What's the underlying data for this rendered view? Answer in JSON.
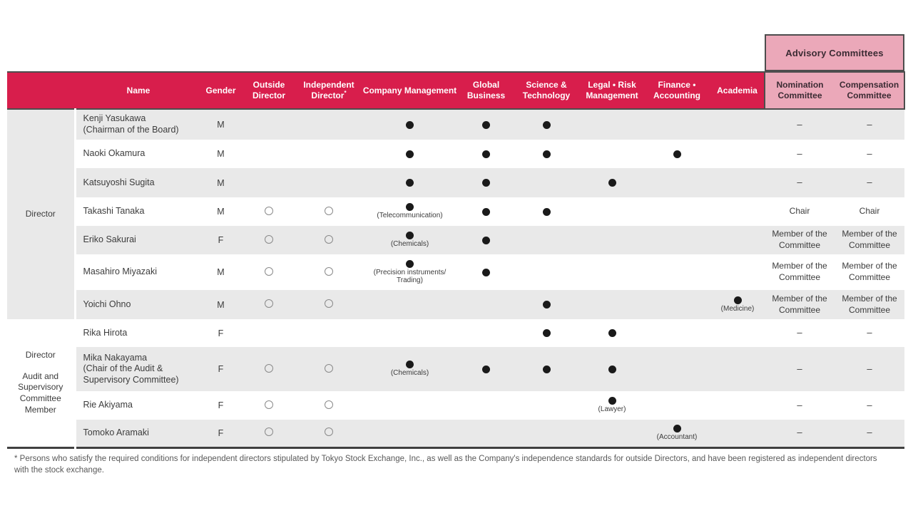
{
  "advisory": {
    "title": "Advisory Committees"
  },
  "table": {
    "columns": [
      {
        "key": "name",
        "label": "Name"
      },
      {
        "key": "gender",
        "label": "Gender"
      },
      {
        "key": "outside",
        "label": "Outside Director"
      },
      {
        "key": "independent",
        "label": "Independent Director",
        "asterisk": "*"
      },
      {
        "key": "company_management",
        "label": "Company Management"
      },
      {
        "key": "global_business",
        "label": "Global Business"
      },
      {
        "key": "science_technology",
        "label": "Science & Technology"
      },
      {
        "key": "legal_risk",
        "label": "Legal • Risk Management"
      },
      {
        "key": "finance_accounting",
        "label": "Finance • Accounting"
      },
      {
        "key": "academia",
        "label": "Academia"
      },
      {
        "key": "nomination",
        "label": "Nomination Committee",
        "pink": true
      },
      {
        "key": "compensation",
        "label": "Compensation Committee",
        "pink": true
      }
    ],
    "skill_keys": [
      "company_management",
      "global_business",
      "science_technology",
      "legal_risk",
      "finance_accounting",
      "academia"
    ],
    "groups": [
      {
        "label_lines": [
          "Director"
        ],
        "span": 7
      },
      {
        "label_lines": [
          "Director",
          "Audit and Supervisory Committee Member"
        ],
        "span": 4
      }
    ],
    "rows": [
      {
        "name_lines": [
          "Kenji Yasukawa",
          "(Chairman of the Board)"
        ],
        "gender": "M",
        "outside": false,
        "independent": false,
        "skills": {
          "company_management": {},
          "global_business": {},
          "science_technology": {}
        },
        "nomination": "–",
        "compensation": "–"
      },
      {
        "name_lines": [
          "Naoki Okamura"
        ],
        "gender": "M",
        "outside": false,
        "independent": false,
        "skills": {
          "company_management": {},
          "global_business": {},
          "science_technology": {},
          "finance_accounting": {}
        },
        "nomination": "–",
        "compensation": "–"
      },
      {
        "name_lines": [
          "Katsuyoshi Sugita"
        ],
        "gender": "M",
        "outside": false,
        "independent": false,
        "skills": {
          "company_management": {},
          "global_business": {},
          "legal_risk": {}
        },
        "nomination": "–",
        "compensation": "–"
      },
      {
        "name_lines": [
          "Takashi Tanaka"
        ],
        "gender": "M",
        "outside": true,
        "independent": true,
        "skills": {
          "company_management": {
            "note_lines": [
              "(Telecommunication)"
            ]
          },
          "global_business": {},
          "science_technology": {}
        },
        "nomination": "Chair",
        "compensation": "Chair"
      },
      {
        "name_lines": [
          "Eriko Sakurai"
        ],
        "gender": "F",
        "outside": true,
        "independent": true,
        "skills": {
          "company_management": {
            "note_lines": [
              "(Chemicals)"
            ]
          },
          "global_business": {}
        },
        "nomination": "Member of the Committee",
        "compensation": "Member of the Committee"
      },
      {
        "name_lines": [
          "Masahiro Miyazaki"
        ],
        "gender": "M",
        "outside": true,
        "independent": true,
        "skills": {
          "company_management": {
            "note_lines": [
              "(Precision instruments/",
              "Trading)"
            ]
          },
          "global_business": {}
        },
        "nomination": "Member of the Committee",
        "compensation": "Member of the Committee"
      },
      {
        "name_lines": [
          "Yoichi Ohno"
        ],
        "gender": "M",
        "outside": true,
        "independent": true,
        "skills": {
          "science_technology": {},
          "academia": {
            "note_lines": [
              "(Medicine)"
            ]
          }
        },
        "nomination": "Member of the Committee",
        "compensation": "Member of the Committee"
      },
      {
        "name_lines": [
          "Rika Hirota"
        ],
        "gender": "F",
        "outside": false,
        "independent": false,
        "skills": {
          "science_technology": {},
          "legal_risk": {}
        },
        "nomination": "–",
        "compensation": "–"
      },
      {
        "name_lines": [
          "Mika Nakayama",
          "(Chair of the Audit &",
          "Supervisory Committee)"
        ],
        "gender": "F",
        "outside": true,
        "independent": true,
        "skills": {
          "company_management": {
            "note_lines": [
              "(Chemicals)"
            ]
          },
          "global_business": {},
          "science_technology": {},
          "legal_risk": {}
        },
        "nomination": "–",
        "compensation": "–"
      },
      {
        "name_lines": [
          "Rie Akiyama"
        ],
        "gender": "F",
        "outside": true,
        "independent": true,
        "skills": {
          "legal_risk": {
            "note_lines": [
              "(Lawyer)"
            ]
          }
        },
        "nomination": "–",
        "compensation": "–"
      },
      {
        "name_lines": [
          "Tomoko Aramaki"
        ],
        "gender": "F",
        "outside": true,
        "independent": true,
        "skills": {
          "finance_accounting": {
            "note_lines": [
              "(Accountant)"
            ]
          }
        },
        "nomination": "–",
        "compensation": "–"
      }
    ]
  },
  "footnote": "* Persons who satisfy the required conditions for independent directors stipulated by Tokyo Stock Exchange, Inc., as well as the Company's independence standards for outside Directors, and have been registered as independent directors with the stock exchange.",
  "colors": {
    "accent": "#d81e4c",
    "pink": "#eba8b9",
    "pink_text": "#3b2b33",
    "row_alt": "#e9e9e9",
    "border_dark": "#4d4d4d",
    "border_bottom": "#404040",
    "text": "#3c3c3c",
    "muted": "#595959",
    "dot": "#1a1a1a",
    "circle": "#8a8a8a"
  }
}
